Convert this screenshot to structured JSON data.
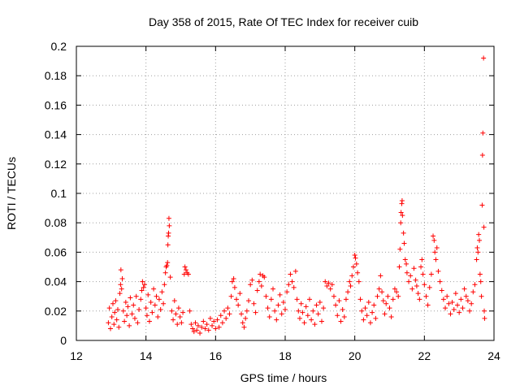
{
  "chart_data": {
    "type": "scatter",
    "title": "Day 358 of 2015, Rate Of TEC Index for receiver cuib",
    "xlabel": "GPS time / hours",
    "ylabel": "ROTI / TECUs",
    "xlim": [
      12,
      24
    ],
    "ylim": [
      0,
      0.2
    ],
    "xticks": [
      12,
      14,
      16,
      18,
      20,
      22,
      24
    ],
    "xtick_labels": [
      "12",
      "14",
      "16",
      "18",
      "20",
      "22",
      "24"
    ],
    "yticks": [
      0,
      0.02,
      0.04,
      0.06,
      0.08,
      0.1,
      0.12,
      0.14,
      0.16,
      0.18,
      0.2
    ],
    "ytick_labels": [
      "0",
      "0.02",
      "0.04",
      "0.06",
      "0.08",
      "0.1",
      "0.12",
      "0.14",
      "0.16",
      "0.18",
      "0.2"
    ],
    "grid": true,
    "marker": "+",
    "color": "#ff0000",
    "series": [
      {
        "name": "ROTI",
        "points": [
          [
            12.92,
            0.012
          ],
          [
            12.95,
            0.022
          ],
          [
            12.98,
            0.008
          ],
          [
            13.02,
            0.016
          ],
          [
            13.05,
            0.025
          ],
          [
            13.08,
            0.011
          ],
          [
            13.1,
            0.019
          ],
          [
            13.13,
            0.027
          ],
          [
            13.16,
            0.014
          ],
          [
            13.19,
            0.021
          ],
          [
            13.22,
            0.009
          ],
          [
            13.25,
            0.032
          ],
          [
            13.27,
            0.038
          ],
          [
            13.28,
            0.048
          ],
          [
            13.3,
            0.035
          ],
          [
            13.32,
            0.042
          ],
          [
            13.35,
            0.02
          ],
          [
            13.38,
            0.013
          ],
          [
            13.42,
            0.026
          ],
          [
            13.45,
            0.017
          ],
          [
            13.48,
            0.023
          ],
          [
            13.52,
            0.01
          ],
          [
            13.55,
            0.029
          ],
          [
            13.6,
            0.018
          ],
          [
            13.64,
            0.024
          ],
          [
            13.68,
            0.015
          ],
          [
            13.72,
            0.03
          ],
          [
            13.76,
            0.012
          ],
          [
            13.8,
            0.021
          ],
          [
            13.85,
            0.028
          ],
          [
            13.88,
            0.034
          ],
          [
            13.9,
            0.04
          ],
          [
            13.93,
            0.036
          ],
          [
            13.96,
            0.038
          ],
          [
            14.0,
            0.022
          ],
          [
            14.03,
            0.017
          ],
          [
            14.06,
            0.031
          ],
          [
            14.1,
            0.013
          ],
          [
            14.14,
            0.026
          ],
          [
            14.18,
            0.019
          ],
          [
            14.22,
            0.035
          ],
          [
            14.26,
            0.024
          ],
          [
            14.3,
            0.03
          ],
          [
            14.34,
            0.016
          ],
          [
            14.38,
            0.028
          ],
          [
            14.42,
            0.021
          ],
          [
            14.46,
            0.033
          ],
          [
            14.5,
            0.025
          ],
          [
            14.53,
            0.038
          ],
          [
            14.56,
            0.046
          ],
          [
            14.58,
            0.05
          ],
          [
            14.6,
            0.051
          ],
          [
            14.62,
            0.053
          ],
          [
            14.63,
            0.065
          ],
          [
            14.64,
            0.071
          ],
          [
            14.65,
            0.073
          ],
          [
            14.66,
            0.083
          ],
          [
            14.67,
            0.078
          ],
          [
            14.7,
            0.043
          ],
          [
            14.74,
            0.02
          ],
          [
            14.78,
            0.014
          ],
          [
            14.82,
            0.027
          ],
          [
            14.86,
            0.018
          ],
          [
            14.9,
            0.011
          ],
          [
            14.94,
            0.022
          ],
          [
            14.98,
            0.016
          ],
          [
            15.02,
            0.012
          ],
          [
            15.06,
            0.019
          ],
          [
            15.1,
            0.045
          ],
          [
            15.12,
            0.05
          ],
          [
            15.15,
            0.048
          ],
          [
            15.18,
            0.046
          ],
          [
            15.22,
            0.045
          ],
          [
            15.26,
            0.02
          ],
          [
            15.3,
            0.011
          ],
          [
            15.34,
            0.008
          ],
          [
            15.38,
            0.006
          ],
          [
            15.42,
            0.012
          ],
          [
            15.46,
            0.007
          ],
          [
            15.5,
            0.01
          ],
          [
            15.55,
            0.005
          ],
          [
            15.6,
            0.009
          ],
          [
            15.65,
            0.013
          ],
          [
            15.7,
            0.008
          ],
          [
            15.75,
            0.011
          ],
          [
            15.8,
            0.007
          ],
          [
            15.85,
            0.015
          ],
          [
            15.9,
            0.01
          ],
          [
            15.95,
            0.013
          ],
          [
            16.0,
            0.008
          ],
          [
            16.05,
            0.014
          ],
          [
            16.1,
            0.009
          ],
          [
            16.15,
            0.017
          ],
          [
            16.2,
            0.012
          ],
          [
            16.25,
            0.02
          ],
          [
            16.3,
            0.015
          ],
          [
            16.35,
            0.022
          ],
          [
            16.4,
            0.018
          ],
          [
            16.45,
            0.03
          ],
          [
            16.48,
            0.04
          ],
          [
            16.52,
            0.042
          ],
          [
            16.55,
            0.036
          ],
          [
            16.6,
            0.028
          ],
          [
            16.65,
            0.024
          ],
          [
            16.7,
            0.032
          ],
          [
            16.74,
            0.018
          ],
          [
            16.78,
            0.012
          ],
          [
            16.82,
            0.009
          ],
          [
            16.86,
            0.015
          ],
          [
            16.9,
            0.02
          ],
          [
            16.95,
            0.027
          ],
          [
            17.0,
            0.038
          ],
          [
            17.05,
            0.041
          ],
          [
            17.1,
            0.025
          ],
          [
            17.15,
            0.019
          ],
          [
            17.2,
            0.034
          ],
          [
            17.25,
            0.04
          ],
          [
            17.28,
            0.045
          ],
          [
            17.32,
            0.037
          ],
          [
            17.36,
            0.044
          ],
          [
            17.4,
            0.043
          ],
          [
            17.45,
            0.03
          ],
          [
            17.5,
            0.022
          ],
          [
            17.55,
            0.016
          ],
          [
            17.6,
            0.028
          ],
          [
            17.65,
            0.035
          ],
          [
            17.7,
            0.02
          ],
          [
            17.75,
            0.014
          ],
          [
            17.8,
            0.024
          ],
          [
            17.85,
            0.031
          ],
          [
            17.9,
            0.018
          ],
          [
            17.95,
            0.026
          ],
          [
            18.0,
            0.021
          ],
          [
            18.05,
            0.033
          ],
          [
            18.1,
            0.038
          ],
          [
            18.15,
            0.045
          ],
          [
            18.2,
            0.04
          ],
          [
            18.25,
            0.036
          ],
          [
            18.3,
            0.047
          ],
          [
            18.34,
            0.028
          ],
          [
            18.38,
            0.02
          ],
          [
            18.42,
            0.015
          ],
          [
            18.46,
            0.025
          ],
          [
            18.5,
            0.019
          ],
          [
            18.55,
            0.012
          ],
          [
            18.6,
            0.023
          ],
          [
            18.65,
            0.017
          ],
          [
            18.7,
            0.028
          ],
          [
            18.75,
            0.014
          ],
          [
            18.8,
            0.02
          ],
          [
            18.85,
            0.011
          ],
          [
            18.9,
            0.024
          ],
          [
            18.95,
            0.018
          ],
          [
            19.0,
            0.026
          ],
          [
            19.05,
            0.013
          ],
          [
            19.1,
            0.022
          ],
          [
            19.15,
            0.04
          ],
          [
            19.2,
            0.037
          ],
          [
            19.25,
            0.039
          ],
          [
            19.3,
            0.035
          ],
          [
            19.35,
            0.038
          ],
          [
            19.4,
            0.03
          ],
          [
            19.45,
            0.024
          ],
          [
            19.5,
            0.017
          ],
          [
            19.55,
            0.027
          ],
          [
            19.6,
            0.013
          ],
          [
            19.65,
            0.021
          ],
          [
            19.7,
            0.016
          ],
          [
            19.75,
            0.028
          ],
          [
            19.8,
            0.033
          ],
          [
            19.85,
            0.04
          ],
          [
            19.88,
            0.037
          ],
          [
            19.92,
            0.044
          ],
          [
            19.96,
            0.05
          ],
          [
            20.0,
            0.058
          ],
          [
            20.02,
            0.056
          ],
          [
            20.05,
            0.052
          ],
          [
            20.08,
            0.046
          ],
          [
            20.12,
            0.04
          ],
          [
            20.16,
            0.028
          ],
          [
            20.2,
            0.02
          ],
          [
            20.25,
            0.014
          ],
          [
            20.3,
            0.022
          ],
          [
            20.35,
            0.017
          ],
          [
            20.4,
            0.026
          ],
          [
            20.45,
            0.012
          ],
          [
            20.5,
            0.019
          ],
          [
            20.55,
            0.024
          ],
          [
            20.6,
            0.015
          ],
          [
            20.65,
            0.03
          ],
          [
            20.7,
            0.035
          ],
          [
            20.74,
            0.044
          ],
          [
            20.78,
            0.033
          ],
          [
            20.82,
            0.027
          ],
          [
            20.86,
            0.018
          ],
          [
            20.9,
            0.025
          ],
          [
            20.95,
            0.03
          ],
          [
            21.0,
            0.022
          ],
          [
            21.05,
            0.016
          ],
          [
            21.1,
            0.028
          ],
          [
            21.15,
            0.035
          ],
          [
            21.2,
            0.033
          ],
          [
            21.25,
            0.03
          ],
          [
            21.28,
            0.05
          ],
          [
            21.3,
            0.062
          ],
          [
            21.32,
            0.08
          ],
          [
            21.33,
            0.087
          ],
          [
            21.35,
            0.093
          ],
          [
            21.36,
            0.095
          ],
          [
            21.37,
            0.085
          ],
          [
            21.4,
            0.073
          ],
          [
            21.42,
            0.066
          ],
          [
            21.45,
            0.055
          ],
          [
            21.48,
            0.052
          ],
          [
            21.5,
            0.046
          ],
          [
            21.55,
            0.04
          ],
          [
            21.6,
            0.044
          ],
          [
            21.65,
            0.035
          ],
          [
            21.7,
            0.049
          ],
          [
            21.75,
            0.041
          ],
          [
            21.78,
            0.037
          ],
          [
            21.82,
            0.032
          ],
          [
            21.86,
            0.028
          ],
          [
            21.9,
            0.05
          ],
          [
            21.93,
            0.055
          ],
          [
            21.96,
            0.045
          ],
          [
            22.0,
            0.038
          ],
          [
            22.05,
            0.03
          ],
          [
            22.1,
            0.024
          ],
          [
            22.15,
            0.036
          ],
          [
            22.2,
            0.045
          ],
          [
            22.25,
            0.071
          ],
          [
            22.28,
            0.068
          ],
          [
            22.3,
            0.06
          ],
          [
            22.33,
            0.055
          ],
          [
            22.36,
            0.063
          ],
          [
            22.4,
            0.047
          ],
          [
            22.45,
            0.04
          ],
          [
            22.5,
            0.034
          ],
          [
            22.55,
            0.028
          ],
          [
            22.6,
            0.022
          ],
          [
            22.65,
            0.03
          ],
          [
            22.7,
            0.025
          ],
          [
            22.75,
            0.018
          ],
          [
            22.8,
            0.026
          ],
          [
            22.85,
            0.021
          ],
          [
            22.9,
            0.032
          ],
          [
            22.95,
            0.024
          ],
          [
            23.0,
            0.019
          ],
          [
            23.05,
            0.028
          ],
          [
            23.1,
            0.022
          ],
          [
            23.15,
            0.035
          ],
          [
            23.2,
            0.03
          ],
          [
            23.25,
            0.027
          ],
          [
            23.3,
            0.02
          ],
          [
            23.35,
            0.025
          ],
          [
            23.4,
            0.033
          ],
          [
            23.45,
            0.038
          ],
          [
            23.5,
            0.055
          ],
          [
            23.52,
            0.063
          ],
          [
            23.54,
            0.06
          ],
          [
            23.56,
            0.072
          ],
          [
            23.58,
            0.068
          ],
          [
            23.6,
            0.045
          ],
          [
            23.62,
            0.04
          ],
          [
            23.64,
            0.03
          ],
          [
            23.66,
            0.092
          ],
          [
            23.67,
            0.126
          ],
          [
            23.68,
            0.141
          ],
          [
            23.7,
            0.192
          ],
          [
            23.71,
            0.077
          ],
          [
            23.72,
            0.02
          ],
          [
            23.73,
            0.015
          ]
        ]
      }
    ]
  }
}
